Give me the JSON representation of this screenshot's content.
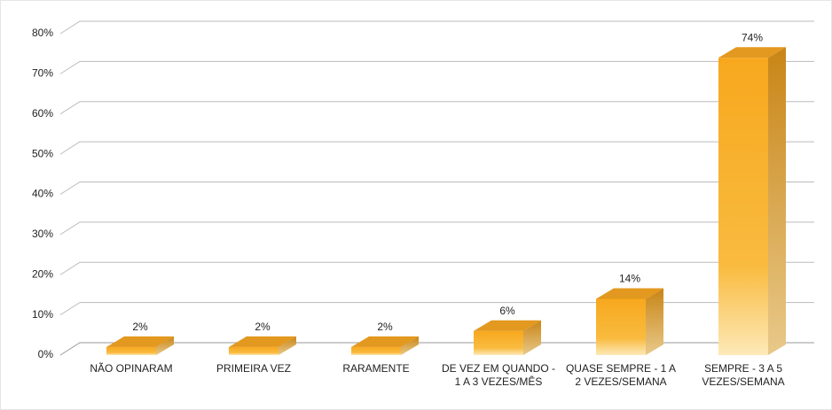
{
  "chart_data": {
    "type": "bar3d",
    "categories": [
      "NÃO OPINARAM",
      "PRIMEIRA VEZ",
      "RARAMENTE",
      "DE VEZ EM QUANDO - 1 A 3 VEZES/MÊS",
      "QUASE SEMPRE - 1 A 2 VEZES/SEMANA",
      "SEMPRE - 3 A 5 VEZES/SEMANA"
    ],
    "values": [
      2,
      2,
      2,
      6,
      14,
      74
    ],
    "value_labels": [
      "2%",
      "2%",
      "2%",
      "6%",
      "14%",
      "74%"
    ],
    "color": "#f5a623",
    "ylim": [
      0,
      80
    ],
    "yticks": [
      {
        "value": 0,
        "label": "0%"
      },
      {
        "value": 10,
        "label": "10%"
      },
      {
        "value": 20,
        "label": "20%"
      },
      {
        "value": 30,
        "label": "30%"
      },
      {
        "value": 40,
        "label": "40%"
      },
      {
        "value": 50,
        "label": "50%"
      },
      {
        "value": 60,
        "label": "60%"
      },
      {
        "value": 70,
        "label": "70%"
      },
      {
        "value": 80,
        "label": "80%"
      }
    ],
    "grid": true
  }
}
